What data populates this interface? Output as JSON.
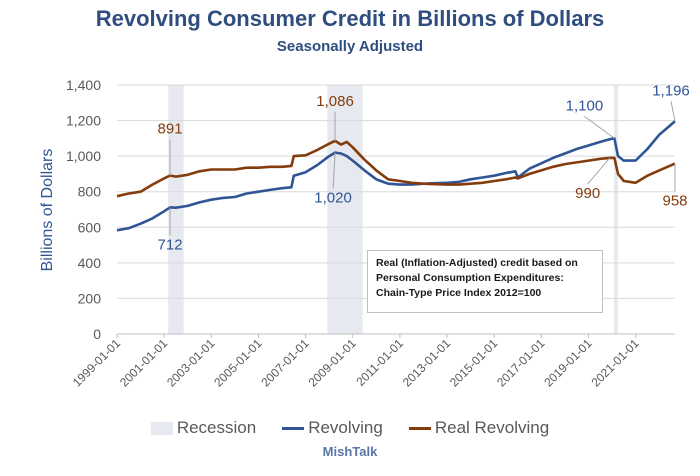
{
  "chart_data": {
    "type": "line",
    "title": "Revolving Consumer Credit in Billions of Dollars",
    "subtitle": "Seasonally Adjusted",
    "ylabel": "Billions of Dollars",
    "xlabel": "",
    "ylim": [
      0,
      1400
    ],
    "yticks": [
      0,
      200,
      400,
      600,
      800,
      1000,
      1200,
      1400
    ],
    "ytick_labels": [
      "0",
      "200",
      "400",
      "600",
      "800",
      "1,000",
      "1,200",
      "1,400"
    ],
    "xlim": [
      1999.0,
      2022.67
    ],
    "xticks": [
      1999,
      2001,
      2003,
      2005,
      2007,
      2009,
      2011,
      2013,
      2015,
      2017,
      2019,
      2021
    ],
    "xtick_labels": [
      "1999-01-01",
      "2001-01-01",
      "2003-01-01",
      "2005-01-01",
      "2007-01-01",
      "2009-01-01",
      "2011-01-01",
      "2013-01-01",
      "2015-01-01",
      "2017-01-01",
      "2019-01-01",
      "2021-01-01"
    ],
    "grid": "horizontal",
    "legend_position": "bottom",
    "recessions": [
      {
        "start": 2001.17,
        "end": 2001.83
      },
      {
        "start": 2007.92,
        "end": 2009.42
      },
      {
        "start": 2020.08,
        "end": 2020.25
      }
    ],
    "x": [
      1999.0,
      1999.5,
      2000.0,
      2000.5,
      2001.0,
      2001.25,
      2001.5,
      2002.0,
      2002.5,
      2003.0,
      2003.5,
      2004.0,
      2004.5,
      2005.0,
      2005.5,
      2006.0,
      2006.4,
      2006.5,
      2007.0,
      2007.5,
      2008.0,
      2008.25,
      2008.5,
      2008.75,
      2009.0,
      2009.5,
      2010.0,
      2010.5,
      2011.0,
      2011.5,
      2012.0,
      2012.5,
      2013.0,
      2013.5,
      2014.0,
      2014.5,
      2015.0,
      2015.5,
      2015.9,
      2016.0,
      2016.5,
      2017.0,
      2017.5,
      2018.0,
      2018.5,
      2019.0,
      2019.5,
      2019.9,
      2020.1,
      2020.25,
      2020.5,
      2021.0,
      2021.5,
      2022.0,
      2022.67
    ],
    "series": [
      {
        "name": "Revolving",
        "color": "#2f5597",
        "values": [
          583,
          595,
          620,
          650,
          690,
          712,
          710,
          720,
          740,
          755,
          765,
          770,
          790,
          800,
          810,
          820,
          825,
          890,
          910,
          950,
          1000,
          1020,
          1015,
          1000,
          975,
          920,
          870,
          845,
          840,
          840,
          845,
          848,
          850,
          855,
          870,
          880,
          890,
          905,
          915,
          880,
          930,
          960,
          990,
          1015,
          1040,
          1060,
          1080,
          1095,
          1100,
          1000,
          975,
          975,
          1040,
          1120,
          1196
        ]
      },
      {
        "name": "Real Revolving",
        "color": "#843c0c",
        "values": [
          775,
          790,
          800,
          840,
          875,
          891,
          885,
          895,
          915,
          925,
          925,
          925,
          935,
          935,
          940,
          940,
          945,
          1000,
          1005,
          1035,
          1070,
          1086,
          1065,
          1080,
          1050,
          980,
          920,
          870,
          860,
          850,
          845,
          842,
          840,
          840,
          845,
          850,
          860,
          870,
          880,
          875,
          900,
          920,
          940,
          955,
          965,
          975,
          985,
          990,
          990,
          900,
          860,
          850,
          890,
          920,
          958
        ]
      },
      {
        "name": "Recession",
        "color": "#e6eaf0",
        "values": []
      }
    ],
    "annotations": [
      {
        "series": "Real Revolving",
        "x": 2001.25,
        "value": 891,
        "label": "891"
      },
      {
        "series": "Revolving",
        "x": 2001.25,
        "value": 712,
        "label": "712"
      },
      {
        "series": "Real Revolving",
        "x": 2008.25,
        "value": 1086,
        "label": "1,086"
      },
      {
        "series": "Revolving",
        "x": 2008.25,
        "value": 1020,
        "label": "1,020"
      },
      {
        "series": "Revolving",
        "x": 2020.1,
        "value": 1100,
        "label": "1,100"
      },
      {
        "series": "Real Revolving",
        "x": 2019.9,
        "value": 990,
        "label": "990"
      },
      {
        "series": "Revolving",
        "x": 2022.67,
        "value": 1196,
        "label": "1,196"
      },
      {
        "series": "Real Revolving",
        "x": 2022.67,
        "value": 958,
        "label": "958"
      }
    ],
    "note": "Real (Inflation-Adjusted) credit based on Personal Consumption Expenditures: Chain-Type Price Index 2012=100",
    "source": "MishTalk"
  },
  "legend": {
    "recession": "Recession",
    "revolving": "Revolving",
    "real_revolving": "Real Revolving"
  }
}
